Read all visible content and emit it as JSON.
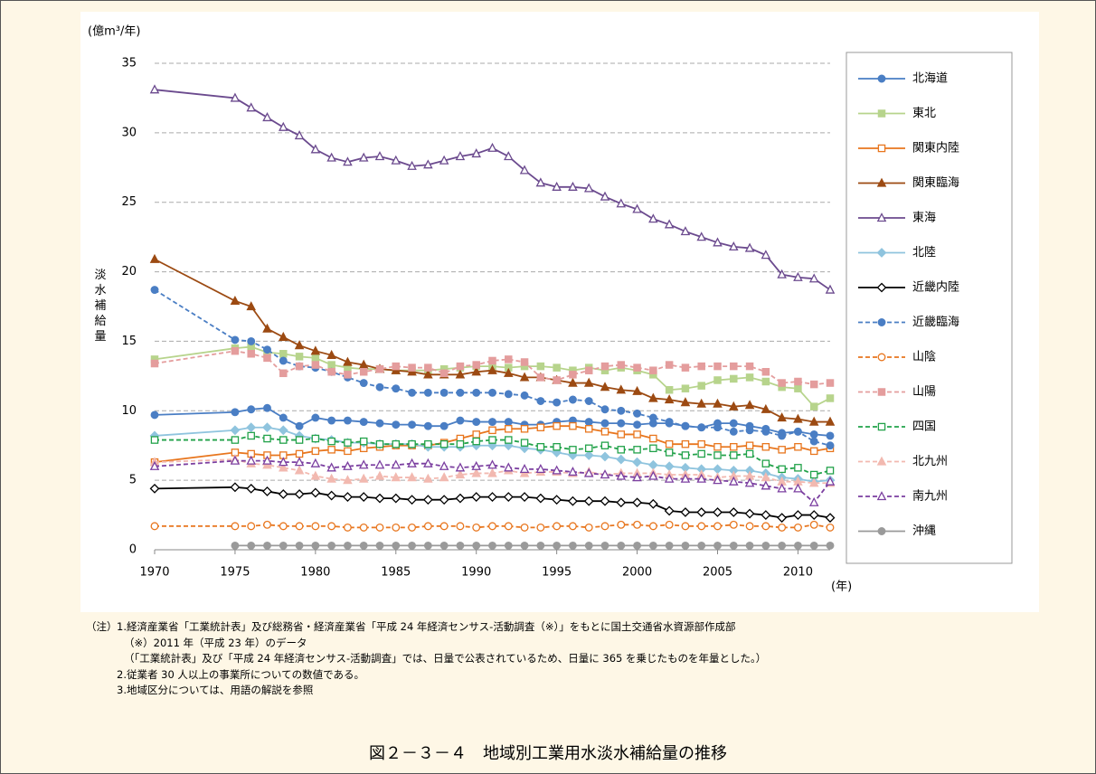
{
  "chart_data": {
    "type": "line",
    "y_unit": "(億m³/年)",
    "x_unit": "(年)",
    "y_label": "淡水補給量",
    "x": [
      1970,
      1975,
      1976,
      1977,
      1978,
      1979,
      1980,
      1981,
      1982,
      1983,
      1984,
      1985,
      1986,
      1987,
      1988,
      1989,
      1990,
      1991,
      1992,
      1993,
      1994,
      1995,
      1996,
      1997,
      1998,
      1999,
      2000,
      2001,
      2002,
      2003,
      2004,
      2005,
      2006,
      2007,
      2008,
      2009,
      2010,
      2011,
      2012
    ],
    "xlim": [
      1970,
      2012
    ],
    "xticks": [
      1970,
      1975,
      1980,
      1985,
      1990,
      1995,
      2000,
      2005,
      2010
    ],
    "ylim": [
      0,
      35
    ],
    "yticks": [
      0,
      5,
      10,
      15,
      20,
      25,
      30,
      35
    ],
    "grid": true,
    "legend": "right",
    "series": [
      {
        "name": "北海道",
        "color": "#4a7ec4",
        "dashed": false,
        "marker": "circle",
        "filled": true,
        "values": [
          9.7,
          9.9,
          10.1,
          10.2,
          9.5,
          8.9,
          9.5,
          9.3,
          9.3,
          9.2,
          9.1,
          9.0,
          9.0,
          8.9,
          8.9,
          9.3,
          9.2,
          9.2,
          9.2,
          9.0,
          9.0,
          9.2,
          9.3,
          9.2,
          9.1,
          9.1,
          9.0,
          9.1,
          9.1,
          8.9,
          8.8,
          9.1,
          9.1,
          8.9,
          8.7,
          8.4,
          8.5,
          8.3,
          8.2
        ]
      },
      {
        "name": "東北",
        "color": "#b7d48c",
        "dashed": false,
        "marker": "square",
        "filled": true,
        "values": [
          13.7,
          14.5,
          14.6,
          14.2,
          14.1,
          13.9,
          13.8,
          13.3,
          13.1,
          13.0,
          13.0,
          12.9,
          12.9,
          12.9,
          13.0,
          13.1,
          13.2,
          13.2,
          13.1,
          13.2,
          13.2,
          13.1,
          12.9,
          13.1,
          12.9,
          13.1,
          12.9,
          12.6,
          11.5,
          11.6,
          11.8,
          12.2,
          12.3,
          12.4,
          12.1,
          11.7,
          11.6,
          10.3,
          10.9
        ]
      },
      {
        "name": "関東内陸",
        "color": "#e8761e",
        "dashed": false,
        "marker": "square",
        "filled": false,
        "values": [
          6.3,
          7.0,
          6.9,
          6.8,
          6.8,
          6.9,
          7.1,
          7.2,
          7.1,
          7.3,
          7.4,
          7.5,
          7.5,
          7.5,
          7.7,
          8.0,
          8.3,
          8.6,
          8.7,
          8.7,
          8.8,
          8.9,
          8.9,
          8.7,
          8.5,
          8.3,
          8.3,
          8.0,
          7.6,
          7.6,
          7.6,
          7.4,
          7.4,
          7.5,
          7.4,
          7.2,
          7.4,
          7.1,
          7.3
        ]
      },
      {
        "name": "関東臨海",
        "color": "#9c4a12",
        "dashed": false,
        "marker": "triangle",
        "filled": true,
        "values": [
          20.9,
          17.9,
          17.5,
          15.9,
          15.3,
          14.7,
          14.3,
          14.0,
          13.5,
          13.3,
          13.0,
          12.9,
          12.8,
          12.6,
          12.6,
          12.6,
          12.8,
          12.9,
          12.7,
          12.4,
          12.4,
          12.2,
          12.0,
          12.0,
          11.7,
          11.5,
          11.4,
          10.9,
          10.8,
          10.6,
          10.5,
          10.5,
          10.3,
          10.4,
          10.1,
          9.5,
          9.4,
          9.2,
          9.2
        ]
      },
      {
        "name": "東海",
        "color": "#6b4a8e",
        "dashed": false,
        "marker": "triangle",
        "filled": false,
        "values": [
          33.1,
          32.5,
          31.8,
          31.1,
          30.4,
          29.8,
          28.8,
          28.2,
          27.9,
          28.2,
          28.3,
          28.0,
          27.6,
          27.7,
          28.0,
          28.3,
          28.5,
          28.9,
          28.3,
          27.3,
          26.4,
          26.1,
          26.1,
          26.0,
          25.4,
          24.9,
          24.5,
          23.8,
          23.4,
          22.9,
          22.5,
          22.1,
          21.8,
          21.7,
          21.2,
          19.8,
          19.6,
          19.5,
          18.7
        ]
      },
      {
        "name": "北陸",
        "color": "#8fc4de",
        "dashed": false,
        "marker": "diamond",
        "filled": true,
        "values": [
          8.2,
          8.6,
          8.8,
          8.8,
          8.6,
          8.2,
          8.0,
          7.9,
          7.7,
          7.7,
          7.6,
          7.6,
          7.6,
          7.4,
          7.4,
          7.4,
          7.5,
          7.5,
          7.5,
          7.3,
          7.2,
          7.0,
          6.8,
          6.8,
          6.7,
          6.5,
          6.3,
          6.1,
          6.0,
          5.9,
          5.8,
          5.8,
          5.7,
          5.7,
          5.5,
          5.2,
          5.1,
          4.9,
          5.0
        ]
      },
      {
        "name": "近畿内陸",
        "color": "#000000",
        "dashed": false,
        "marker": "diamond",
        "filled": false,
        "values": [
          4.4,
          4.5,
          4.4,
          4.2,
          4.0,
          4.0,
          4.1,
          3.9,
          3.8,
          3.8,
          3.7,
          3.7,
          3.6,
          3.6,
          3.6,
          3.7,
          3.8,
          3.8,
          3.8,
          3.8,
          3.7,
          3.6,
          3.5,
          3.5,
          3.5,
          3.4,
          3.4,
          3.3,
          2.8,
          2.7,
          2.7,
          2.7,
          2.7,
          2.6,
          2.5,
          2.3,
          2.5,
          2.5,
          2.3
        ]
      },
      {
        "name": "近畿臨海",
        "color": "#4a7ec4",
        "dashed": true,
        "marker": "circle",
        "filled": true,
        "values": [
          18.7,
          15.1,
          15.0,
          14.4,
          13.6,
          13.2,
          13.1,
          12.8,
          12.4,
          12.0,
          11.7,
          11.6,
          11.3,
          11.3,
          11.3,
          11.3,
          11.3,
          11.3,
          11.2,
          11.1,
          10.7,
          10.6,
          10.8,
          10.7,
          10.1,
          10.0,
          9.8,
          9.5,
          9.2,
          8.9,
          8.8,
          8.8,
          8.5,
          8.6,
          8.5,
          8.2,
          8.5,
          7.8,
          7.5
        ]
      },
      {
        "name": "山陰",
        "color": "#e8761e",
        "dashed": true,
        "marker": "circle",
        "filled": false,
        "values": [
          1.7,
          1.7,
          1.7,
          1.8,
          1.7,
          1.7,
          1.7,
          1.7,
          1.6,
          1.6,
          1.6,
          1.6,
          1.6,
          1.7,
          1.7,
          1.7,
          1.6,
          1.7,
          1.7,
          1.6,
          1.6,
          1.7,
          1.7,
          1.6,
          1.7,
          1.8,
          1.8,
          1.7,
          1.8,
          1.7,
          1.7,
          1.7,
          1.8,
          1.7,
          1.7,
          1.6,
          1.6,
          1.8,
          1.6
        ]
      },
      {
        "name": "山陽",
        "color": "#e49d9d",
        "dashed": true,
        "marker": "square",
        "filled": true,
        "values": [
          13.4,
          14.3,
          14.1,
          13.8,
          12.7,
          13.2,
          13.3,
          12.8,
          12.6,
          12.8,
          13.0,
          13.2,
          13.1,
          13.1,
          12.7,
          13.2,
          13.3,
          13.6,
          13.7,
          13.5,
          12.4,
          12.2,
          12.6,
          12.9,
          13.2,
          13.3,
          13.1,
          12.9,
          13.3,
          13.1,
          13.2,
          13.2,
          13.2,
          13.2,
          12.8,
          12.0,
          12.1,
          11.9,
          12.0
        ]
      },
      {
        "name": "四国",
        "color": "#22a24a",
        "dashed": true,
        "marker": "square",
        "filled": false,
        "values": [
          7.9,
          7.9,
          8.2,
          8.0,
          7.9,
          7.9,
          8.0,
          7.8,
          7.7,
          7.8,
          7.6,
          7.6,
          7.6,
          7.6,
          7.6,
          7.6,
          7.8,
          7.9,
          7.9,
          7.7,
          7.4,
          7.4,
          7.2,
          7.3,
          7.5,
          7.2,
          7.2,
          7.3,
          7.0,
          6.8,
          6.9,
          6.8,
          6.8,
          6.9,
          6.2,
          5.8,
          5.9,
          5.4,
          5.7
        ]
      },
      {
        "name": "北九州",
        "color": "#f2b9b0",
        "dashed": true,
        "marker": "triangle",
        "filled": true,
        "values": [
          6.3,
          6.5,
          6.2,
          6.1,
          5.9,
          5.7,
          5.3,
          5.1,
          5.0,
          5.1,
          5.3,
          5.2,
          5.2,
          5.1,
          5.2,
          5.4,
          5.5,
          5.5,
          5.7,
          5.5,
          5.6,
          5.6,
          5.5,
          5.6,
          5.4,
          5.5,
          5.5,
          5.5,
          5.4,
          5.4,
          5.4,
          5.2,
          5.3,
          5.3,
          5.2,
          4.9,
          4.9,
          4.8,
          4.8
        ]
      },
      {
        "name": "南九州",
        "color": "#7b3fa0",
        "dashed": true,
        "marker": "triangle",
        "filled": false,
        "values": [
          6.0,
          6.4,
          6.4,
          6.4,
          6.3,
          6.3,
          6.2,
          5.9,
          6.0,
          6.1,
          6.1,
          6.1,
          6.2,
          6.2,
          6.0,
          5.9,
          6.0,
          6.1,
          5.9,
          5.8,
          5.8,
          5.7,
          5.6,
          5.5,
          5.4,
          5.3,
          5.2,
          5.3,
          5.1,
          5.1,
          5.1,
          5.0,
          4.9,
          4.8,
          4.6,
          4.4,
          4.4,
          3.4,
          4.9
        ]
      },
      {
        "name": "沖縄",
        "color": "#9a9a9a",
        "dashed": false,
        "marker": "circle",
        "filled": true,
        "values": [
          null,
          0.3,
          0.3,
          0.3,
          0.3,
          0.3,
          0.3,
          0.3,
          0.3,
          0.3,
          0.3,
          0.3,
          0.3,
          0.3,
          0.3,
          0.3,
          0.3,
          0.3,
          0.3,
          0.3,
          0.3,
          0.3,
          0.3,
          0.3,
          0.3,
          0.3,
          0.3,
          0.3,
          0.3,
          0.3,
          0.3,
          0.3,
          0.3,
          0.3,
          0.3,
          0.3,
          0.3,
          0.3,
          0.3
        ]
      }
    ]
  },
  "notes": {
    "label": "（注）",
    "lines": [
      "1.経済産業省「工業統計表」及び総務省・経済産業省「平成 24 年経済センサス-活動調査（※）」をもとに国土交通省水資源部作成部",
      "（※）2011 年（平成 23 年）のデータ",
      "（「工業統計表」及び「平成 24 年経済センサス-活動調査」では、日量で公表されているため、日量に 365 を乗じたものを年量とした。）",
      "2.従業者 30 人以上の事業所についての数値である。",
      "3.地域区分については、用語の解説を参照"
    ]
  },
  "caption": "図２－３－４　地域別工業用水淡水補給量の推移"
}
